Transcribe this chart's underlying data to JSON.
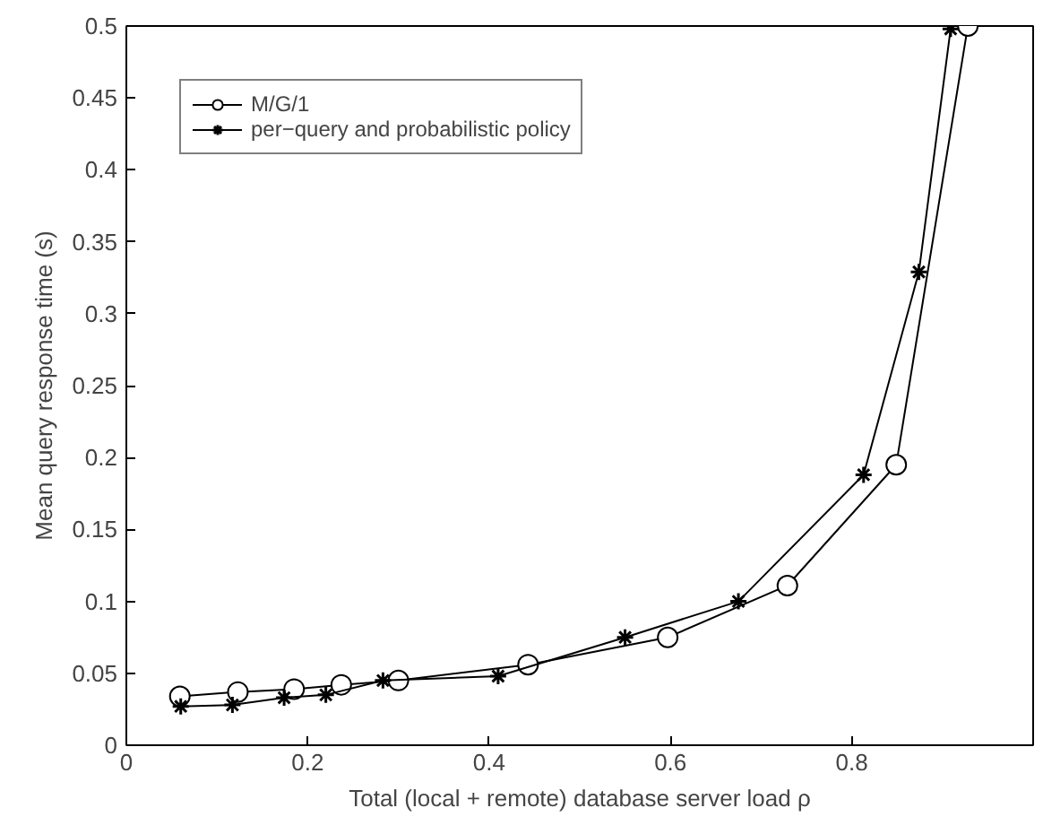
{
  "chart_data": {
    "type": "line",
    "xlabel": "Total (local + remote) database server load ρ",
    "ylabel": "Mean query response time (s)",
    "xlim": [
      0,
      1
    ],
    "xticks": [
      0,
      0.2,
      0.4,
      0.6,
      0.8
    ],
    "ylim": [
      0,
      0.5
    ],
    "yticks": [
      0,
      0.05,
      0.1,
      0.15,
      0.2,
      0.25,
      0.3,
      0.35,
      0.4,
      0.45,
      0.5
    ],
    "grid": false,
    "legend": "top left",
    "line_style": "solid",
    "series": [
      {
        "name": "M/G/1",
        "color": "#000000",
        "marker": "circle",
        "x": [
          0.059,
          0.123,
          0.185,
          0.237,
          0.3,
          0.443,
          0.597,
          0.729,
          0.849,
          0.928
        ],
        "values": [
          0.034,
          0.037,
          0.039,
          0.042,
          0.045,
          0.056,
          0.075,
          0.111,
          0.195,
          0.5
        ]
      },
      {
        "name": "per−query and probabilistic policy",
        "color": "#000000",
        "marker": "cross",
        "x": [
          0.06,
          0.117,
          0.174,
          0.22,
          0.283,
          0.41,
          0.55,
          0.675,
          0.813,
          0.874,
          0.909
        ],
        "values": [
          0.027,
          0.028,
          0.033,
          0.035,
          0.045,
          0.048,
          0.075,
          0.1,
          0.188,
          0.329,
          0.498
        ]
      }
    ]
  }
}
